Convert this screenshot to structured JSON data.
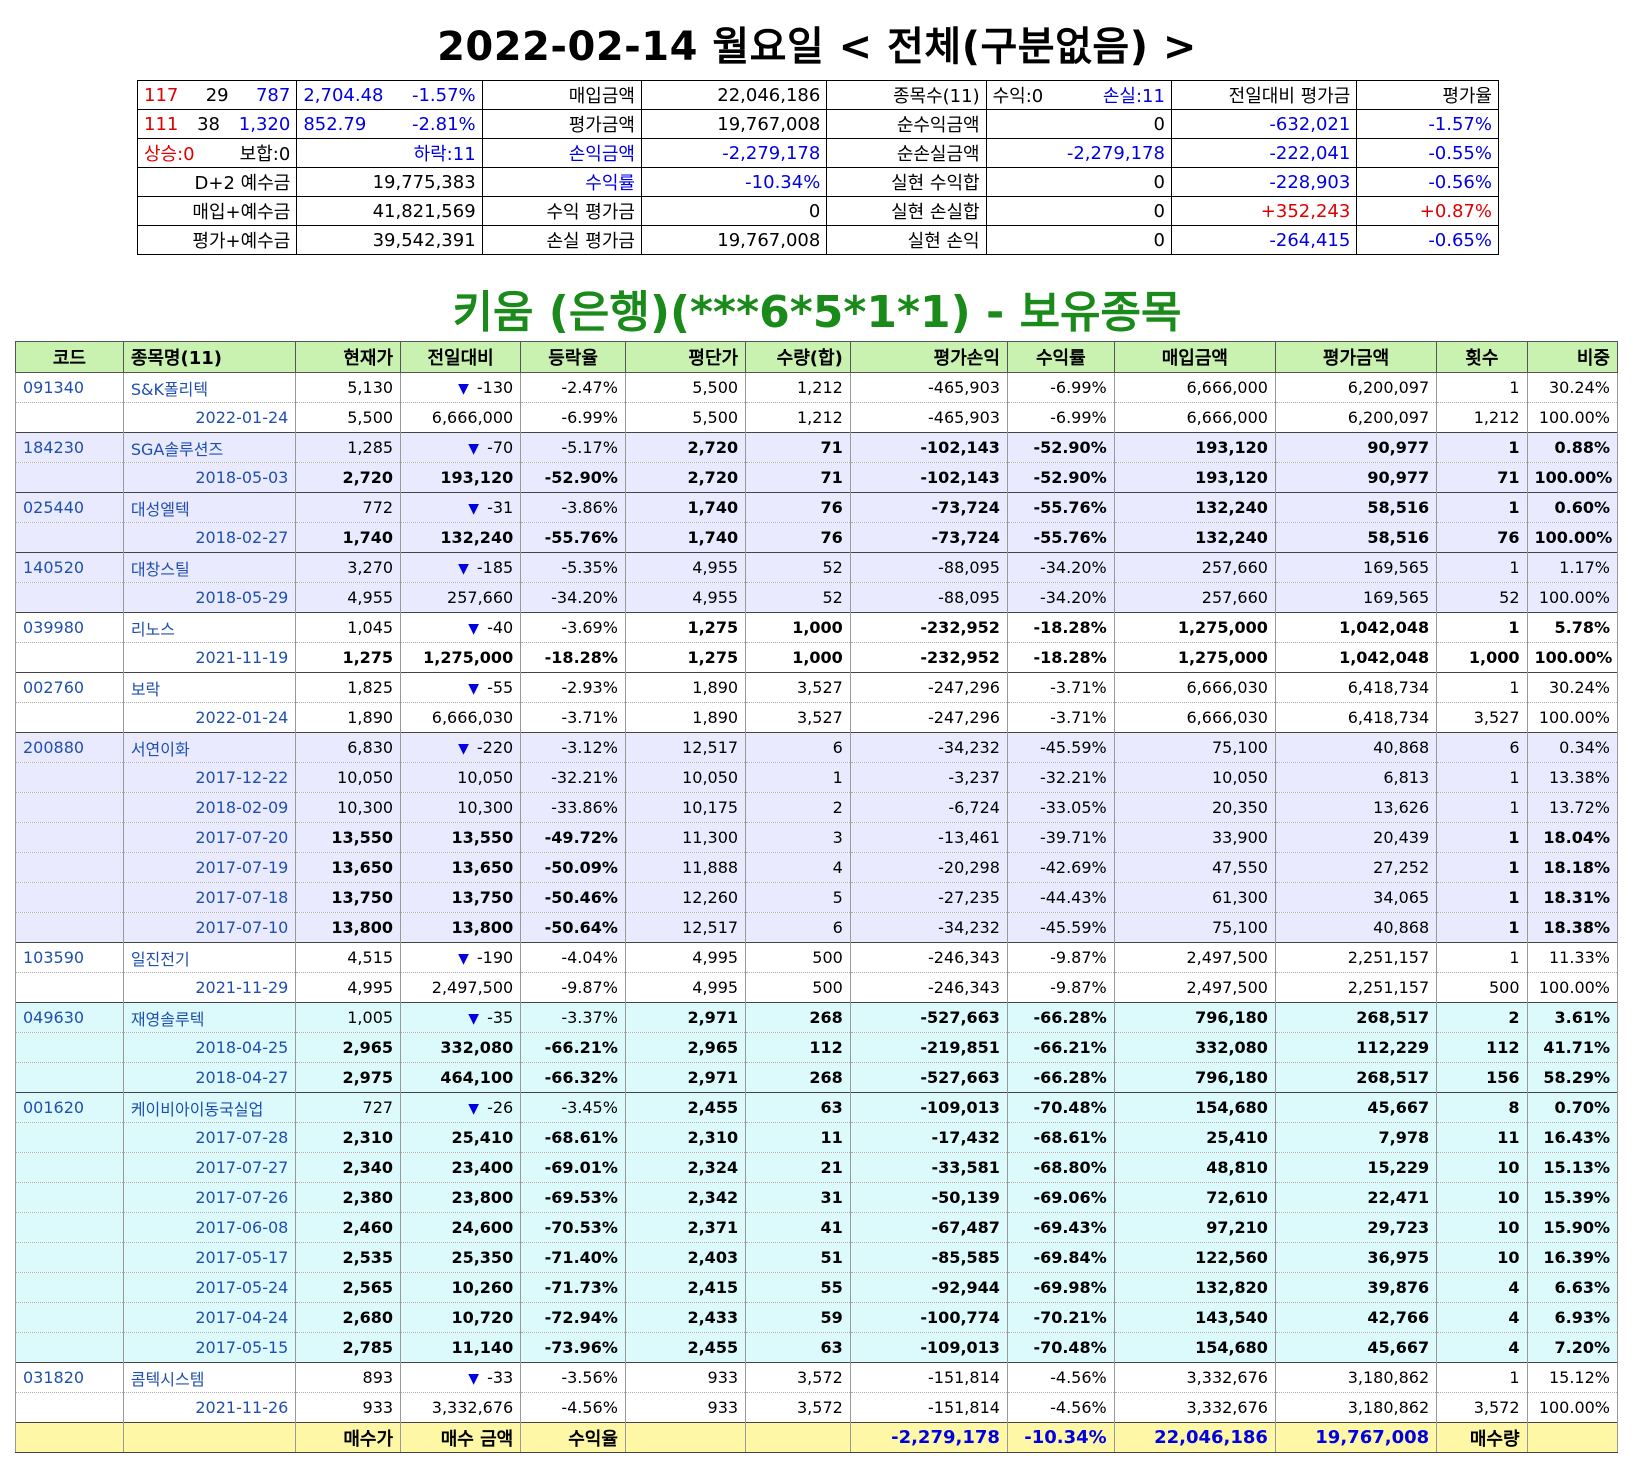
{
  "title": "2022-02-14 월요일 < 전체(구분없음) >",
  "account_title": "키움 (은행)(***6*5*1*1) - 보유종목",
  "summary": {
    "r1": {
      "a": "117",
      "b": "29",
      "c": "787",
      "idx": "2,704.48",
      "pct": "-1.57%",
      "l1": "매입금액",
      "v1": "22,046,186",
      "l2": "종목수(11)",
      "w": "수익:0",
      "s": "손실:11",
      "l3": "전일대비 평가금",
      "l4": "평가율"
    },
    "r2": {
      "a": "111",
      "b": "38",
      "c": "1,320",
      "idx": "852.79",
      "pct": "-2.81%",
      "l1": "평가금액",
      "v1": "19,767,008",
      "l2": "순수익금액",
      "v2": "0",
      "v3": "-632,021",
      "v4": "-1.57%"
    },
    "r3": {
      "up": "상승:0",
      "flat": "보합:0",
      "down": "하락:11",
      "l1": "손익금액",
      "v1": "-2,279,178",
      "l2": "순손실금액",
      "v2": "-2,279,178",
      "v3": "-222,041",
      "v4": "-0.55%"
    },
    "r4": {
      "l0": "D+2 예수금",
      "v0": "19,775,383",
      "l1": "수익률",
      "v1": "-10.34%",
      "l2": "실현 수익합",
      "v2": "0",
      "v3": "-228,903",
      "v4": "-0.56%"
    },
    "r5": {
      "l0": "매입+예수금",
      "v0": "41,821,569",
      "l1": "수익 평가금",
      "v1": "0",
      "l2": "실현 손실합",
      "v2": "0",
      "v3": "+352,243",
      "v4": "+0.87%"
    },
    "r6": {
      "l0": "평가+예수금",
      "v0": "39,542,391",
      "l1": "손실 평가금",
      "v1": "19,767,008",
      "l2": "실현 손익",
      "v2": "0",
      "v3": "-264,415",
      "v4": "-0.65%"
    }
  },
  "headers": [
    "코드",
    "종목명(11)",
    "현재가",
    "전일대비",
    "등락율",
    "평단가",
    "수량(합)",
    "평가손익",
    "수익률",
    "매입금액",
    "평가금액",
    "횟수",
    "비중"
  ],
  "rows": [
    {
      "bg": "w",
      "first": true,
      "bold": false,
      "code": "091340",
      "name": "S&K폴리텍",
      "c3": "5,130",
      "arrow": "▼",
      "c4": "-130",
      "c5": "-2.47%",
      "c6": "5,500",
      "c7": "1,212",
      "c8": "-465,903",
      "c9": "-6.99%",
      "c10": "6,666,000",
      "c11": "6,200,097",
      "c12": "1",
      "c13": "30.24%"
    },
    {
      "bg": "w",
      "first": false,
      "bold": false,
      "code": "",
      "date": "2022-01-24",
      "c3": "5,500",
      "c4": "6,666,000",
      "c5": "-6.99%",
      "c6": "5,500",
      "c7": "1,212",
      "c8": "-465,903",
      "c9": "-6.99%",
      "c10": "6,666,000",
      "c11": "6,200,097",
      "c12": "1,212",
      "c13": "100.00%"
    },
    {
      "bg": "l",
      "first": true,
      "bold": false,
      "code": "184230",
      "name": "SGA솔루션즈",
      "c3": "1,285",
      "arrow": "▼",
      "c4": "-70",
      "c5": "-5.17%",
      "c6": "2,720",
      "c7": "71",
      "c8": "-102,143",
      "c9": "-52.90%",
      "c10": "193,120",
      "c11": "90,977",
      "c12": "1",
      "c13": "0.88%",
      "boldFrom": 6
    },
    {
      "bg": "l",
      "first": false,
      "bold": true,
      "code": "",
      "date": "2018-05-03",
      "c3": "2,720",
      "c4": "193,120",
      "c5": "-52.90%",
      "c6": "2,720",
      "c7": "71",
      "c8": "-102,143",
      "c9": "-52.90%",
      "c10": "193,120",
      "c11": "90,977",
      "c12": "71",
      "c13": "100.00%"
    },
    {
      "bg": "l",
      "first": true,
      "bold": false,
      "code": "025440",
      "name": "대성엘텍",
      "c3": "772",
      "arrow": "▼",
      "c4": "-31",
      "c5": "-3.86%",
      "c6": "1,740",
      "c7": "76",
      "c8": "-73,724",
      "c9": "-55.76%",
      "c10": "132,240",
      "c11": "58,516",
      "c12": "1",
      "c13": "0.60%",
      "boldFrom": 6
    },
    {
      "bg": "l",
      "first": false,
      "bold": true,
      "code": "",
      "date": "2018-02-27",
      "c3": "1,740",
      "c4": "132,240",
      "c5": "-55.76%",
      "c6": "1,740",
      "c7": "76",
      "c8": "-73,724",
      "c9": "-55.76%",
      "c10": "132,240",
      "c11": "58,516",
      "c12": "76",
      "c13": "100.00%"
    },
    {
      "bg": "l",
      "first": true,
      "bold": false,
      "code": "140520",
      "name": "대창스틸",
      "c3": "3,270",
      "arrow": "▼",
      "c4": "-185",
      "c5": "-5.35%",
      "c6": "4,955",
      "c7": "52",
      "c8": "-88,095",
      "c9": "-34.20%",
      "c10": "257,660",
      "c11": "169,565",
      "c12": "1",
      "c13": "1.17%"
    },
    {
      "bg": "l",
      "first": false,
      "bold": false,
      "code": "",
      "date": "2018-05-29",
      "c3": "4,955",
      "c4": "257,660",
      "c5": "-34.20%",
      "c6": "4,955",
      "c7": "52",
      "c8": "-88,095",
      "c9": "-34.20%",
      "c10": "257,660",
      "c11": "169,565",
      "c12": "52",
      "c13": "100.00%"
    },
    {
      "bg": "w",
      "first": true,
      "bold": false,
      "code": "039980",
      "name": "리노스",
      "c3": "1,045",
      "arrow": "▼",
      "c4": "-40",
      "c5": "-3.69%",
      "c6": "1,275",
      "c7": "1,000",
      "c8": "-232,952",
      "c9": "-18.28%",
      "c10": "1,275,000",
      "c11": "1,042,048",
      "c12": "1",
      "c13": "5.78%",
      "boldFrom": 6
    },
    {
      "bg": "w",
      "first": false,
      "bold": true,
      "code": "",
      "date": "2021-11-19",
      "c3": "1,275",
      "c4": "1,275,000",
      "c5": "-18.28%",
      "c6": "1,275",
      "c7": "1,000",
      "c8": "-232,952",
      "c9": "-18.28%",
      "c10": "1,275,000",
      "c11": "1,042,048",
      "c12": "1,000",
      "c13": "100.00%"
    },
    {
      "bg": "w",
      "first": true,
      "bold": false,
      "code": "002760",
      "name": "보락",
      "c3": "1,825",
      "arrow": "▼",
      "c4": "-55",
      "c5": "-2.93%",
      "c6": "1,890",
      "c7": "3,527",
      "c8": "-247,296",
      "c9": "-3.71%",
      "c10": "6,666,030",
      "c11": "6,418,734",
      "c12": "1",
      "c13": "30.24%"
    },
    {
      "bg": "w",
      "first": false,
      "bold": false,
      "code": "",
      "date": "2022-01-24",
      "c3": "1,890",
      "c4": "6,666,030",
      "c5": "-3.71%",
      "c6": "1,890",
      "c7": "3,527",
      "c8": "-247,296",
      "c9": "-3.71%",
      "c10": "6,666,030",
      "c11": "6,418,734",
      "c12": "3,527",
      "c13": "100.00%"
    },
    {
      "bg": "l",
      "first": true,
      "bold": false,
      "code": "200880",
      "name": "서연이화",
      "c3": "6,830",
      "arrow": "▼",
      "c4": "-220",
      "c5": "-3.12%",
      "c6": "12,517",
      "c7": "6",
      "c8": "-34,232",
      "c9": "-45.59%",
      "c10": "75,100",
      "c11": "40,868",
      "c12": "6",
      "c13": "0.34%"
    },
    {
      "bg": "l",
      "first": false,
      "bold": false,
      "code": "",
      "date": "2017-12-22",
      "c3": "10,050",
      "c4": "10,050",
      "c5": "-32.21%",
      "c6": "10,050",
      "c7": "1",
      "c8": "-3,237",
      "c9": "-32.21%",
      "c10": "10,050",
      "c11": "6,813",
      "c12": "1",
      "c13": "13.38%"
    },
    {
      "bg": "l",
      "first": false,
      "bold": false,
      "code": "",
      "date": "2018-02-09",
      "c3": "10,300",
      "c4": "10,300",
      "c5": "-33.86%",
      "c6": "10,175",
      "c7": "2",
      "c8": "-6,724",
      "c9": "-33.05%",
      "c10": "20,350",
      "c11": "13,626",
      "c12": "1",
      "c13": "13.72%"
    },
    {
      "bg": "l",
      "first": false,
      "bold": false,
      "boldCols": [
        3,
        4,
        5,
        12,
        13
      ],
      "code": "",
      "date": "2017-07-20",
      "c3": "13,550",
      "c4": "13,550",
      "c5": "-49.72%",
      "c6": "11,300",
      "c7": "3",
      "c8": "-13,461",
      "c9": "-39.71%",
      "c10": "33,900",
      "c11": "20,439",
      "c12": "1",
      "c13": "18.04%"
    },
    {
      "bg": "l",
      "first": false,
      "bold": false,
      "boldCols": [
        3,
        4,
        5,
        12,
        13
      ],
      "code": "",
      "date": "2017-07-19",
      "c3": "13,650",
      "c4": "13,650",
      "c5": "-50.09%",
      "c6": "11,888",
      "c7": "4",
      "c8": "-20,298",
      "c9": "-42.69%",
      "c10": "47,550",
      "c11": "27,252",
      "c12": "1",
      "c13": "18.18%"
    },
    {
      "bg": "l",
      "first": false,
      "bold": false,
      "boldCols": [
        3,
        4,
        5,
        12,
        13
      ],
      "code": "",
      "date": "2017-07-18",
      "c3": "13,750",
      "c4": "13,750",
      "c5": "-50.46%",
      "c6": "12,260",
      "c7": "5",
      "c8": "-27,235",
      "c9": "-44.43%",
      "c10": "61,300",
      "c11": "34,065",
      "c12": "1",
      "c13": "18.31%"
    },
    {
      "bg": "l",
      "first": false,
      "bold": false,
      "boldCols": [
        3,
        4,
        5,
        12,
        13
      ],
      "code": "",
      "date": "2017-07-10",
      "c3": "13,800",
      "c4": "13,800",
      "c5": "-50.64%",
      "c6": "12,517",
      "c7": "6",
      "c8": "-34,232",
      "c9": "-45.59%",
      "c10": "75,100",
      "c11": "40,868",
      "c12": "1",
      "c13": "18.38%"
    },
    {
      "bg": "w",
      "first": true,
      "bold": false,
      "code": "103590",
      "name": "일진전기",
      "c3": "4,515",
      "arrow": "▼",
      "c4": "-190",
      "c5": "-4.04%",
      "c6": "4,995",
      "c7": "500",
      "c8": "-246,343",
      "c9": "-9.87%",
      "c10": "2,497,500",
      "c11": "2,251,157",
      "c12": "1",
      "c13": "11.33%"
    },
    {
      "bg": "w",
      "first": false,
      "bold": false,
      "code": "",
      "date": "2021-11-29",
      "c3": "4,995",
      "c4": "2,497,500",
      "c5": "-9.87%",
      "c6": "4,995",
      "c7": "500",
      "c8": "-246,343",
      "c9": "-9.87%",
      "c10": "2,497,500",
      "c11": "2,251,157",
      "c12": "500",
      "c13": "100.00%"
    },
    {
      "bg": "c",
      "first": true,
      "bold": false,
      "code": "049630",
      "name": "재영솔루텍",
      "c3": "1,005",
      "arrow": "▼",
      "c4": "-35",
      "c5": "-3.37%",
      "c6": "2,971",
      "c7": "268",
      "c8": "-527,663",
      "c9": "-66.28%",
      "c10": "796,180",
      "c11": "268,517",
      "c12": "2",
      "c13": "3.61%",
      "boldFrom": 6
    },
    {
      "bg": "c",
      "first": false,
      "bold": true,
      "code": "",
      "date": "2018-04-25",
      "c3": "2,965",
      "c4": "332,080",
      "c5": "-66.21%",
      "c6": "2,965",
      "c7": "112",
      "c8": "-219,851",
      "c9": "-66.21%",
      "c10": "332,080",
      "c11": "112,229",
      "c12": "112",
      "c13": "41.71%"
    },
    {
      "bg": "c",
      "first": false,
      "bold": true,
      "code": "",
      "date": "2018-04-27",
      "c3": "2,975",
      "c4": "464,100",
      "c5": "-66.32%",
      "c6": "2,971",
      "c7": "268",
      "c8": "-527,663",
      "c9": "-66.28%",
      "c10": "796,180",
      "c11": "268,517",
      "c12": "156",
      "c13": "58.29%"
    },
    {
      "bg": "c",
      "first": true,
      "bold": false,
      "code": "001620",
      "name": "케이비아이동국실업",
      "c3": "727",
      "arrow": "▼",
      "c4": "-26",
      "c5": "-3.45%",
      "c6": "2,455",
      "c7": "63",
      "c8": "-109,013",
      "c9": "-70.48%",
      "c10": "154,680",
      "c11": "45,667",
      "c12": "8",
      "c13": "0.70%",
      "boldFrom": 6
    },
    {
      "bg": "c",
      "first": false,
      "bold": true,
      "code": "",
      "date": "2017-07-28",
      "c3": "2,310",
      "c4": "25,410",
      "c5": "-68.61%",
      "c6": "2,310",
      "c7": "11",
      "c8": "-17,432",
      "c9": "-68.61%",
      "c10": "25,410",
      "c11": "7,978",
      "c12": "11",
      "c13": "16.43%"
    },
    {
      "bg": "c",
      "first": false,
      "bold": true,
      "code": "",
      "date": "2017-07-27",
      "c3": "2,340",
      "c4": "23,400",
      "c5": "-69.01%",
      "c6": "2,324",
      "c7": "21",
      "c8": "-33,581",
      "c9": "-68.80%",
      "c10": "48,810",
      "c11": "15,229",
      "c12": "10",
      "c13": "15.13%"
    },
    {
      "bg": "c",
      "first": false,
      "bold": true,
      "code": "",
      "date": "2017-07-26",
      "c3": "2,380",
      "c4": "23,800",
      "c5": "-69.53%",
      "c6": "2,342",
      "c7": "31",
      "c8": "-50,139",
      "c9": "-69.06%",
      "c10": "72,610",
      "c11": "22,471",
      "c12": "10",
      "c13": "15.39%"
    },
    {
      "bg": "c",
      "first": false,
      "bold": true,
      "code": "",
      "date": "2017-06-08",
      "c3": "2,460",
      "c4": "24,600",
      "c5": "-70.53%",
      "c6": "2,371",
      "c7": "41",
      "c8": "-67,487",
      "c9": "-69.43%",
      "c10": "97,210",
      "c11": "29,723",
      "c12": "10",
      "c13": "15.90%"
    },
    {
      "bg": "c",
      "first": false,
      "bold": true,
      "code": "",
      "date": "2017-05-17",
      "c3": "2,535",
      "c4": "25,350",
      "c5": "-71.40%",
      "c6": "2,403",
      "c7": "51",
      "c8": "-85,585",
      "c9": "-69.84%",
      "c10": "122,560",
      "c11": "36,975",
      "c12": "10",
      "c13": "16.39%"
    },
    {
      "bg": "c",
      "first": false,
      "bold": true,
      "code": "",
      "date": "2017-05-24",
      "c3": "2,565",
      "c4": "10,260",
      "c5": "-71.73%",
      "c6": "2,415",
      "c7": "55",
      "c8": "-92,944",
      "c9": "-69.98%",
      "c10": "132,820",
      "c11": "39,876",
      "c12": "4",
      "c13": "6.63%"
    },
    {
      "bg": "c",
      "first": false,
      "bold": true,
      "code": "",
      "date": "2017-04-24",
      "c3": "2,680",
      "c4": "10,720",
      "c5": "-72.94%",
      "c6": "2,433",
      "c7": "59",
      "c8": "-100,774",
      "c9": "-70.21%",
      "c10": "143,540",
      "c11": "42,766",
      "c12": "4",
      "c13": "6.93%"
    },
    {
      "bg": "c",
      "first": false,
      "bold": true,
      "code": "",
      "date": "2017-05-15",
      "c3": "2,785",
      "c4": "11,140",
      "c5": "-73.96%",
      "c6": "2,455",
      "c7": "63",
      "c8": "-109,013",
      "c9": "-70.48%",
      "c10": "154,680",
      "c11": "45,667",
      "c12": "4",
      "c13": "7.20%"
    },
    {
      "bg": "w",
      "first": true,
      "bold": false,
      "code": "031820",
      "name": "콤텍시스템",
      "c3": "893",
      "arrow": "▼",
      "c4": "-33",
      "c5": "-3.56%",
      "c6": "933",
      "c7": "3,572",
      "c8": "-151,814",
      "c9": "-4.56%",
      "c10": "3,332,676",
      "c11": "3,180,862",
      "c12": "1",
      "c13": "15.12%"
    },
    {
      "bg": "w",
      "first": false,
      "bold": false,
      "code": "",
      "date": "2021-11-26",
      "c3": "933",
      "c4": "3,332,676",
      "c5": "-4.56%",
      "c6": "933",
      "c7": "3,572",
      "c8": "-151,814",
      "c9": "-4.56%",
      "c10": "3,332,676",
      "c11": "3,180,862",
      "c12": "3,572",
      "c13": "100.00%"
    }
  ],
  "total": {
    "c3": "매수가",
    "c4": "매수 금액",
    "c5": "수익율",
    "c8": "-2,279,178",
    "c9": "-10.34%",
    "c10": "22,046,186",
    "c11": "19,767,008",
    "c12": "매수량"
  }
}
